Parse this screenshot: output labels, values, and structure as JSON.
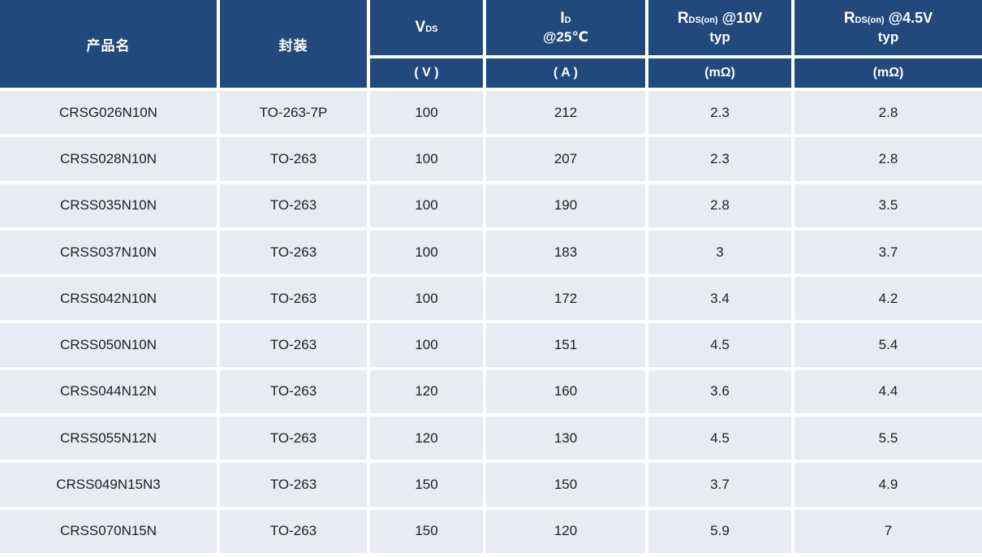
{
  "colors": {
    "header_bg": "#21497C",
    "row_bg": "#E9EBF2",
    "gap": "#FFFFFF",
    "header_text": "#FFFFFF",
    "body_text": "#1F1F1F"
  },
  "chart_data": {
    "type": "table",
    "columns": [
      {
        "key": "product",
        "label": "产品名"
      },
      {
        "key": "package",
        "label": "封装"
      },
      {
        "key": "vds",
        "symbol": "V",
        "subscript": "DS",
        "unit": "( V )"
      },
      {
        "key": "id_at_25c",
        "symbol": "I",
        "subscript": "D",
        "line2": "@25℃",
        "unit": "( A )"
      },
      {
        "key": "rds_on_10v",
        "symbol": "R",
        "subscript": "DS(on)",
        "suffix": "@10V",
        "line2": "typ",
        "unit": "(mΩ)"
      },
      {
        "key": "rds_on_4v5",
        "symbol": "R",
        "subscript": "DS(on)",
        "suffix": "@4.5V",
        "line2": "typ",
        "unit": "(mΩ)"
      }
    ],
    "rows": [
      [
        "CRSG026N10N",
        "TO-263-7P",
        "100",
        "212",
        "2.3",
        "2.8"
      ],
      [
        "CRSS028N10N",
        "TO-263",
        "100",
        "207",
        "2.3",
        "2.8"
      ],
      [
        "CRSS035N10N",
        "TO-263",
        "100",
        "190",
        "2.8",
        "3.5"
      ],
      [
        "CRSS037N10N",
        "TO-263",
        "100",
        "183",
        "3",
        "3.7"
      ],
      [
        "CRSS042N10N",
        "TO-263",
        "100",
        "172",
        "3.4",
        "4.2"
      ],
      [
        "CRSS050N10N",
        "TO-263",
        "100",
        "151",
        "4.5",
        "5.4"
      ],
      [
        "CRSS044N12N",
        "TO-263",
        "120",
        "160",
        "3.6",
        "4.4"
      ],
      [
        "CRSS055N12N",
        "TO-263",
        "120",
        "130",
        "4.5",
        "5.5"
      ],
      [
        "CRSS049N15N3",
        "TO-263",
        "150",
        "150",
        "3.7",
        "4.9"
      ],
      [
        "CRSS070N15N",
        "TO-263",
        "150",
        "120",
        "5.9",
        "7"
      ]
    ]
  }
}
